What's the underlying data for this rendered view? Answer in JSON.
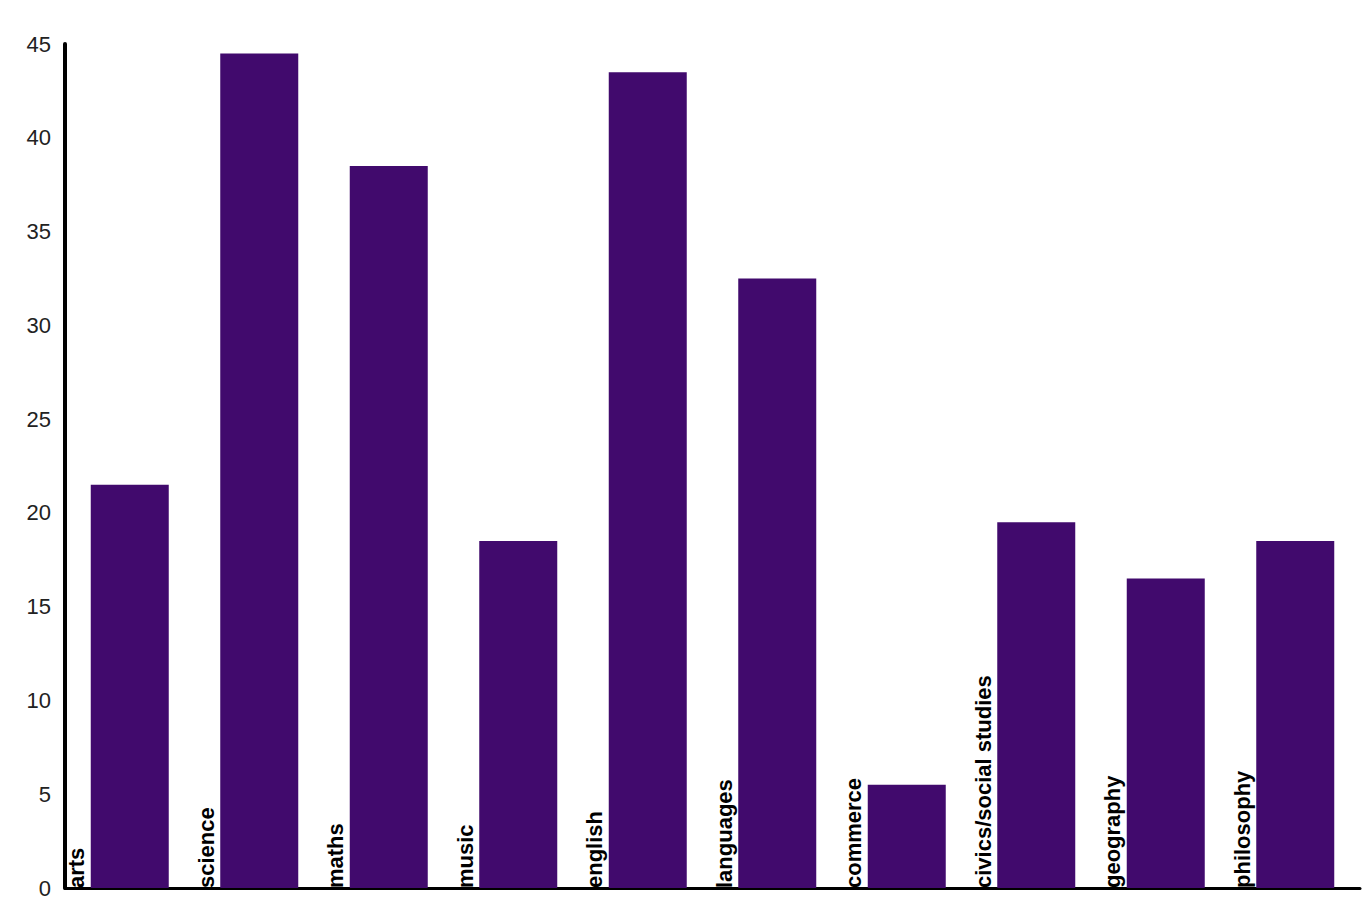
{
  "chart_data": {
    "type": "bar",
    "categories": [
      "arts",
      "science",
      "maths",
      "music",
      "english",
      "languages",
      "commerce",
      "civics/social studies",
      "geography",
      "philosophy"
    ],
    "values": [
      21.5,
      44.5,
      38.5,
      18.5,
      43.5,
      32.5,
      5.5,
      19.5,
      16.5,
      18.5
    ],
    "color": "#410a6d",
    "ylim": [
      0,
      45
    ],
    "yticks": [
      0,
      5,
      10,
      15,
      20,
      25,
      30,
      35,
      40,
      45
    ],
    "grid": false
  }
}
